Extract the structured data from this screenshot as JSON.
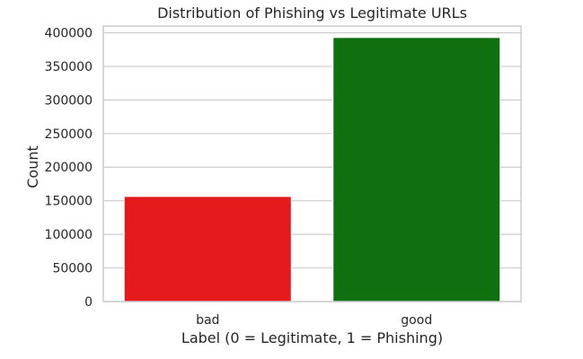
{
  "chart_data": {
    "type": "bar",
    "title": "Distribution of Phishing vs Legitimate URLs",
    "xlabel": "Label (0 = Legitimate, 1 = Phishing)",
    "ylabel": "Count",
    "categories": [
      "bad",
      "good"
    ],
    "values": [
      156422,
      392924
    ],
    "colors": [
      "#e41a1c",
      "#107010"
    ],
    "ylim": [
      0,
      410000
    ],
    "yticks": [
      0,
      50000,
      100000,
      150000,
      200000,
      250000,
      300000,
      350000,
      400000
    ],
    "ytick_labels": [
      "0",
      "50000",
      "100000",
      "150000",
      "200000",
      "250000",
      "300000",
      "350000",
      "400000"
    ],
    "grid": "horizontal",
    "background": "#ffffff",
    "grid_color": "#cccccc",
    "spine_color": "#cccccc",
    "legend": "none"
  }
}
